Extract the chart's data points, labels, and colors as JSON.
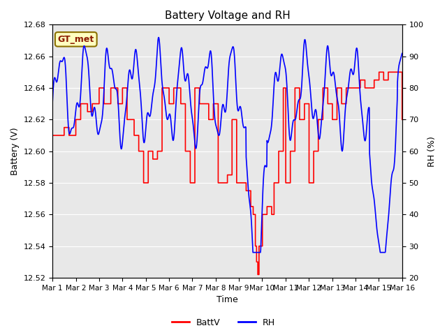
{
  "title": "Battery Voltage and RH",
  "xlabel": "Time",
  "ylabel_left": "Battery (V)",
  "ylabel_right": "RH (%)",
  "ylim_left": [
    12.52,
    12.68
  ],
  "ylim_right": [
    20,
    100
  ],
  "yticks_left": [
    12.52,
    12.54,
    12.56,
    12.58,
    12.6,
    12.62,
    12.64,
    12.66,
    12.68
  ],
  "yticks_right": [
    20,
    30,
    40,
    50,
    60,
    70,
    80,
    90,
    100
  ],
  "xtick_labels": [
    "Mar 1",
    "Mar 2",
    "Mar 3",
    "Mar 4",
    "Mar 5",
    "Mar 6",
    "Mar 7",
    "Mar 8",
    "Mar 9",
    "Mar 10",
    "Mar 11",
    "Mar 12",
    "Mar 13",
    "Mar 14",
    "Mar 15",
    "Mar 16"
  ],
  "legend_labels": [
    "BattV",
    "RH"
  ],
  "legend_colors": [
    "red",
    "blue"
  ],
  "station_label": "GT_met",
  "fig_facecolor": "#ffffff",
  "plot_bg_color": "#e8e8e8",
  "batt_color": "red",
  "rh_color": "blue",
  "batt_lw": 1.2,
  "rh_lw": 1.2
}
